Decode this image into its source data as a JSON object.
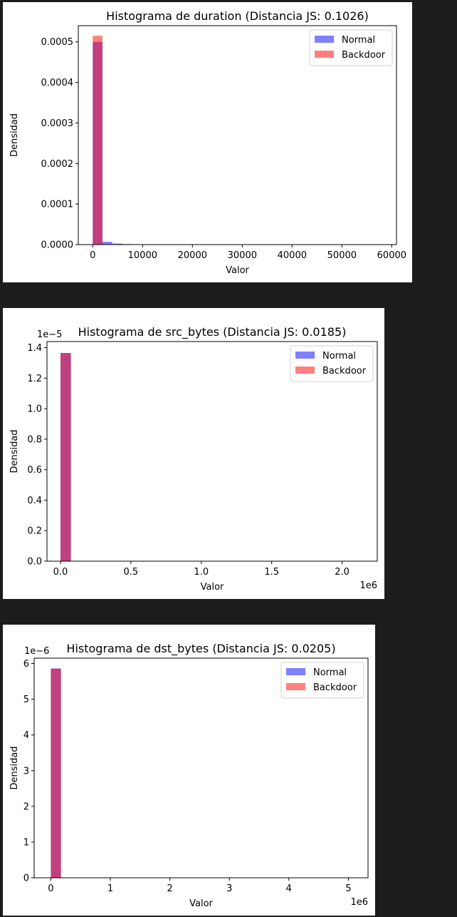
{
  "chart_data": [
    {
      "type": "bar",
      "title": "Histograma de duration (Distancia JS: 0.1026)",
      "xlabel": "Valor",
      "ylabel": "Densidad",
      "xlim": [
        -2900,
        60950
      ],
      "ylim": [
        0,
        0.00054
      ],
      "x_ticks": [
        0,
        10000,
        20000,
        30000,
        40000,
        50000,
        60000
      ],
      "x_tick_labels": [
        "0",
        "10000",
        "20000",
        "30000",
        "40000",
        "50000",
        "60000"
      ],
      "y_ticks": [
        0,
        0.0001,
        0.0002,
        0.0003,
        0.0004,
        0.0005
      ],
      "y_tick_labels": [
        "0.0000",
        "0.0001",
        "0.0002",
        "0.0003",
        "0.0004",
        "0.0005"
      ],
      "offset_label": "",
      "legend_position": "upper right",
      "series": [
        {
          "name": "Normal",
          "color": "#0000ff",
          "bins": [
            {
              "x0": 0,
              "x1": 1950,
              "v": 0.0005
            },
            {
              "x0": 1950,
              "x1": 3900,
              "v": 6.8e-06
            },
            {
              "x0": 3900,
              "x1": 5850,
              "v": 2.5e-06
            },
            {
              "x0": 5850,
              "x1": 7800,
              "v": 1.2e-06
            },
            {
              "x0": 7800,
              "x1": 9750,
              "v": 8e-07
            },
            {
              "x0": 9750,
              "x1": 11700,
              "v": 5e-07
            },
            {
              "x0": 11700,
              "x1": 13650,
              "v": 4e-07
            },
            {
              "x0": 13650,
              "x1": 15600,
              "v": 3e-07
            }
          ]
        },
        {
          "name": "Backdoor",
          "color": "#ff0000",
          "bins": [
            {
              "x0": 0,
              "x1": 1950,
              "v": 0.000515
            }
          ]
        }
      ]
    },
    {
      "type": "bar",
      "title": "Histograma de src_bytes (Distancia JS: 0.0185)",
      "xlabel": "Valor",
      "ylabel": "Densidad",
      "xlim": [
        -96000,
        2250000
      ],
      "ylim": [
        0,
        1.44
      ],
      "x_ticks": [
        0,
        500000,
        1000000,
        1500000,
        2000000
      ],
      "x_tick_labels": [
        "0.0",
        "0.5",
        "1.0",
        "1.5",
        "2.0"
      ],
      "y_ticks": [
        0,
        0.2,
        0.4,
        0.6,
        0.8,
        1.0,
        1.2,
        1.4
      ],
      "y_tick_labels": [
        "0.0",
        "0.2",
        "0.4",
        "0.6",
        "0.8",
        "1.0",
        "1.2",
        "1.4"
      ],
      "offset_label": "1e6",
      "y_offset_label": "1e−5",
      "legend_position": "upper right",
      "series": [
        {
          "name": "Normal",
          "color": "#0000ff",
          "bins": [
            {
              "x0": 0,
              "x1": 73500,
              "v": 1.365
            }
          ]
        },
        {
          "name": "Backdoor",
          "color": "#ff0000",
          "bins": [
            {
              "x0": 0,
              "x1": 73500,
              "v": 1.365
            }
          ]
        }
      ]
    },
    {
      "type": "bar",
      "title": "Histograma de dst_bytes (Distancia JS: 0.0205)",
      "xlabel": "Valor",
      "ylabel": "Densidad",
      "xlim": [
        -280000,
        5330000
      ],
      "ylim": [
        0,
        6.15
      ],
      "x_ticks": [
        0,
        1000000,
        2000000,
        3000000,
        4000000,
        5000000
      ],
      "x_tick_labels": [
        "0",
        "1",
        "2",
        "3",
        "4",
        "5"
      ],
      "y_ticks": [
        0,
        1,
        2,
        3,
        4,
        5,
        6
      ],
      "y_tick_labels": [
        "0",
        "1",
        "2",
        "3",
        "4",
        "5",
        "6"
      ],
      "offset_label": "1e6",
      "y_offset_label": "1e−6",
      "legend_position": "upper right",
      "series": [
        {
          "name": "Normal",
          "color": "#0000ff",
          "bins": [
            {
              "x0": 0,
              "x1": 170000,
              "v": 5.86
            }
          ]
        },
        {
          "name": "Backdoor",
          "color": "#ff0000",
          "bins": [
            {
              "x0": 0,
              "x1": 170000,
              "v": 5.86
            }
          ]
        }
      ]
    }
  ]
}
